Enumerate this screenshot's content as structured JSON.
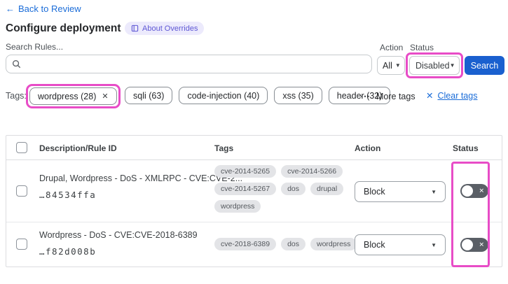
{
  "colors": {
    "highlight_pink": "#e84cc7",
    "link_blue": "#1a6cd8",
    "button_blue": "#1a60cf",
    "badge_bg": "#eceafc",
    "badge_text": "#5f58d5"
  },
  "icons": {
    "back_arrow": "←",
    "close_x": "✕",
    "caret_down": "▼",
    "more_dots": "⋯",
    "toggle_x": "✕"
  },
  "header": {
    "back_link": "Back to Review",
    "title": "Configure deployment",
    "about_badge": "About Overrides"
  },
  "filters": {
    "search_label": "Search Rules...",
    "search_value": "",
    "action_label": "Action",
    "action_value": "All",
    "status_label": "Status",
    "status_value": "Disabled",
    "search_button": "Search"
  },
  "tags_bar": {
    "label": "Tags:",
    "selected_tag": "wordpress (28)",
    "other_tags": [
      "sqli (63)",
      "code-injection (40)",
      "xss (35)",
      "header (32)"
    ],
    "more_tags_label": "More tags",
    "clear_tags_label": "Clear tags"
  },
  "table": {
    "columns": [
      "Description/Rule ID",
      "Tags",
      "Action",
      "Status"
    ],
    "rows": [
      {
        "description": "Drupal, Wordpress - DoS - XMLRPC - CVE:CVE-2...",
        "rule_id": "…84534ffa",
        "tags": [
          "cve-2014-5265",
          "cve-2014-5266",
          "cve-2014-5267",
          "dos",
          "drupal",
          "wordpress"
        ],
        "action": "Block",
        "status": "disabled"
      },
      {
        "description": "Wordpress - DoS - CVE:CVE-2018-6389",
        "rule_id": "…f82d008b",
        "tags": [
          "cve-2018-6389",
          "dos",
          "wordpress"
        ],
        "action": "Block",
        "status": "disabled"
      }
    ]
  }
}
